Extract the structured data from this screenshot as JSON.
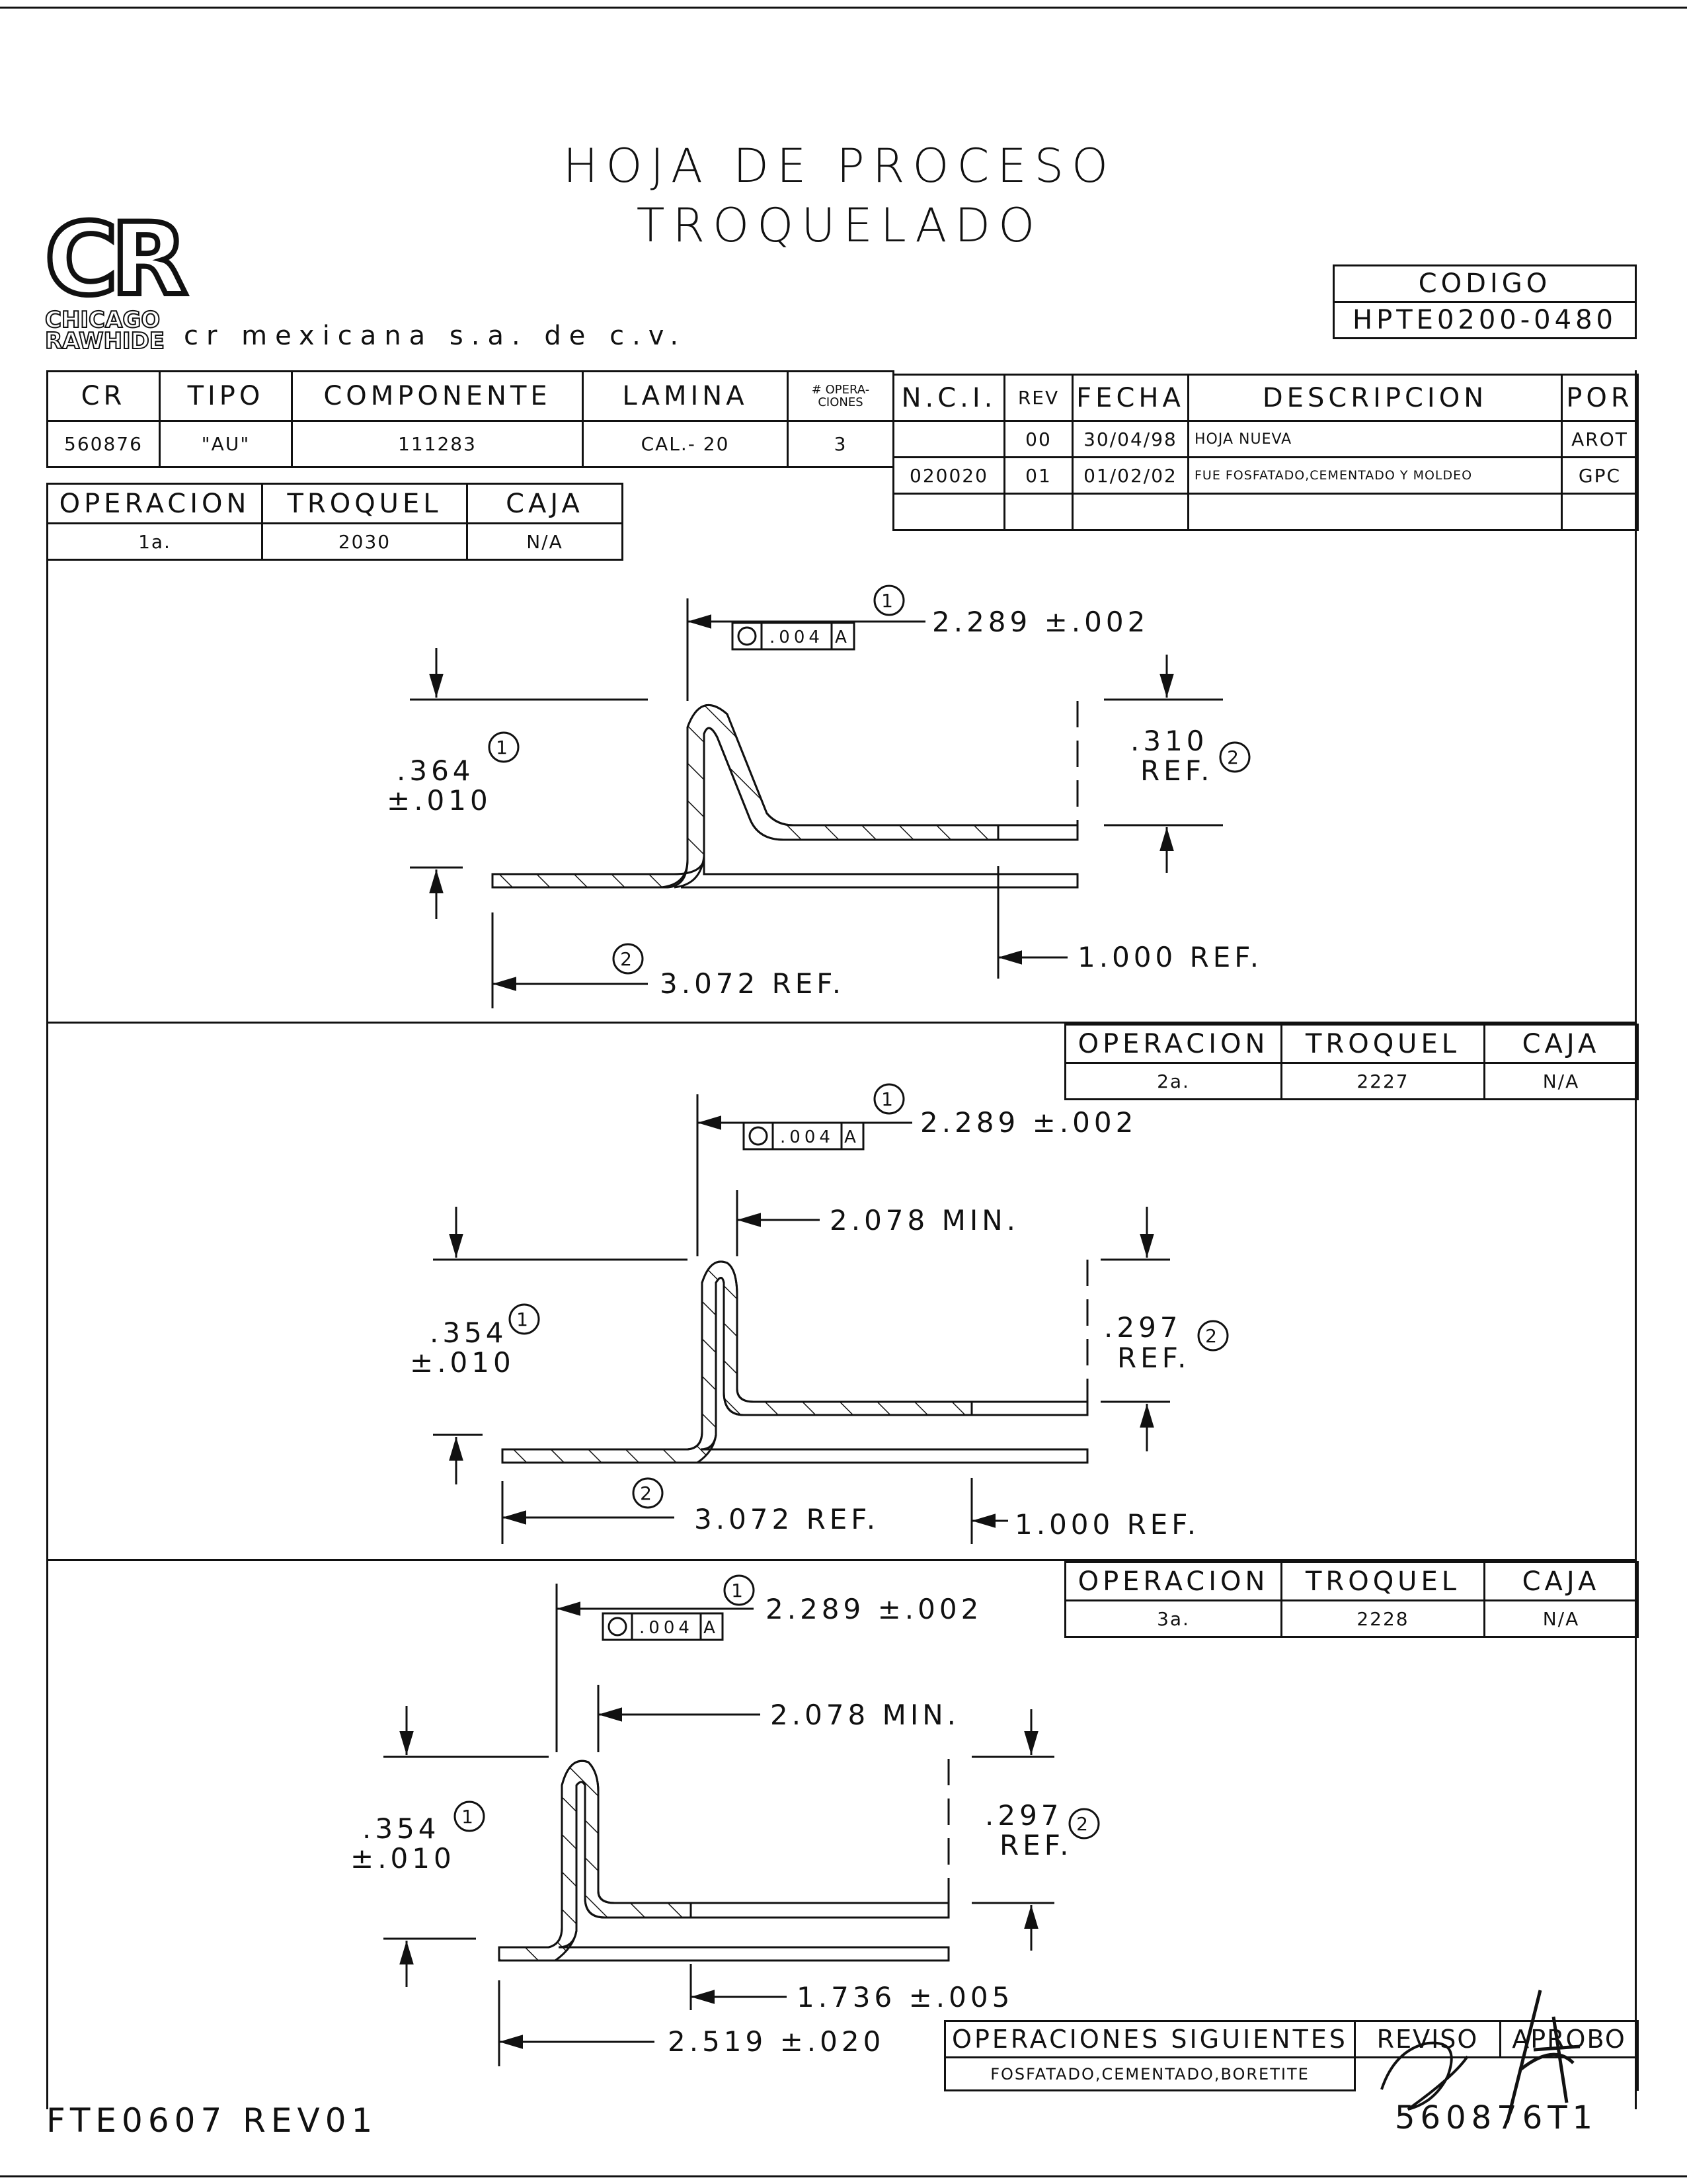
{
  "header": {
    "title_line1": "HOJA DE PROCESO",
    "title_line2": "TROQUELADO",
    "logo_initials": "CR",
    "logo_line1": "CHICAGO",
    "logo_line2": "RAWHIDE",
    "company": "cr mexicana s.a. de c.v.",
    "codigo_label": "CODIGO",
    "codigo_value": "HPTE0200-0480"
  },
  "part_table": {
    "headers": [
      "CR",
      "TIPO",
      "COMPONENTE",
      "LAMINA",
      "# OPERA-",
      "CIONES"
    ],
    "values": [
      "560876",
      "\"AU\"",
      "111283",
      "CAL.- 20",
      "3"
    ]
  },
  "revision_table": {
    "headers": [
      "N.C.I.",
      "REV",
      "FECHA",
      "DESCRIPCION",
      "POR"
    ],
    "rows": [
      {
        "nci": "",
        "rev": "00",
        "fecha": "30/04/98",
        "descripcion": "HOJA NUEVA",
        "por": "AROT"
      },
      {
        "nci": "020020",
        "rev": "01",
        "fecha": "01/02/02",
        "descripcion": "FUE FOSFATADO,CEMENTADO Y MOLDEO",
        "por": "GPC"
      }
    ]
  },
  "op_headers": {
    "operacion": "OPERACION",
    "troquel": "TROQUEL",
    "caja": "CAJA"
  },
  "operations": [
    {
      "operacion": "1a.",
      "troquel": "2030",
      "caja": "N/A",
      "dims": {
        "balloon_a": "1",
        "tol_flat": "2.289 ±.002",
        "fcf": ".004",
        "datum": "A",
        "height_val": ".364",
        "height_tol": "±.010",
        "height_balloon": "1",
        "ref_val": ".310",
        "ref_label": "REF.",
        "ref_balloon": "2",
        "len_ref": "3.072 REF.",
        "len_balloon": "2",
        "end_ref": "1.000 REF."
      }
    },
    {
      "operacion": "2a.",
      "troquel": "2227",
      "caja": "N/A",
      "dims": {
        "balloon_a": "1",
        "tol_flat": "2.289 ±.002",
        "fcf": ".004",
        "datum": "A",
        "min": "2.078 MIN.",
        "height_val": ".354",
        "height_tol": "±.010",
        "height_balloon": "1",
        "ref_val": ".297",
        "ref_label": "REF.",
        "ref_balloon": "2",
        "len_ref": "3.072 REF.",
        "len_balloon": "2",
        "end_ref": "1.000 REF."
      }
    },
    {
      "operacion": "3a.",
      "troquel": "2228",
      "caja": "N/A",
      "dims": {
        "balloon_a": "1",
        "tol_flat": "2.289 ±.002",
        "fcf": ".004",
        "datum": "A",
        "min": "2.078 MIN.",
        "height_val": ".354",
        "height_tol": "±.010",
        "height_balloon": "1",
        "ref_val": ".297",
        "ref_label": "REF.",
        "ref_balloon": "2",
        "flat_tol": "1.736 ±.005",
        "len_tol": "2.519 ±.020"
      }
    }
  ],
  "footer": {
    "next_ops_label": "OPERACIONES SIGUIENTES",
    "next_ops_value": "FOSFATADO,CEMENTADO,BORETITE",
    "reviso": "REVISO",
    "aprobo": "APROBO",
    "form_code": "FTE0607 REV01",
    "drawing_no": "560876T1"
  }
}
